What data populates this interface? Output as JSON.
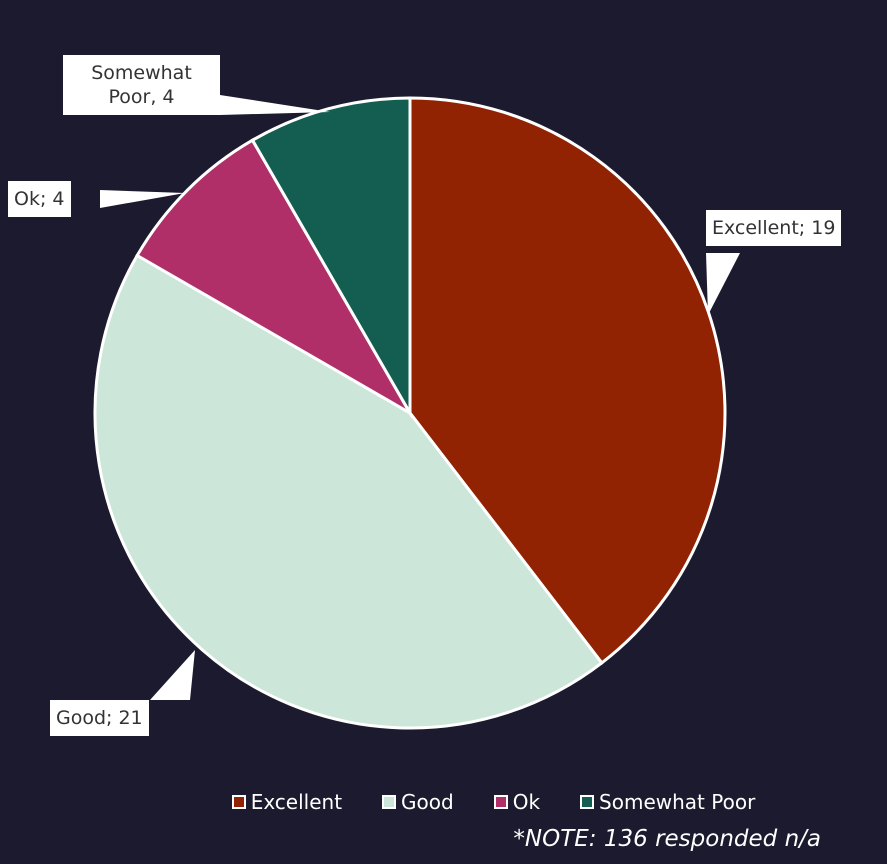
{
  "chart_data": {
    "type": "pie",
    "categories": [
      "Excellent",
      "Good",
      "Ok",
      "Somewhat Poor"
    ],
    "values": [
      19,
      21,
      4,
      4
    ],
    "value_labels": [
      "Excellent; 19",
      "Good; 21",
      "Ok; 4",
      "Somewhat Poor, 4"
    ],
    "colors": [
      "#912303",
      "#cce6d9",
      "#b02f68",
      "#135e50"
    ],
    "legend": "bottom",
    "annotation": "*NOTE: 136 responded n/a"
  }
}
